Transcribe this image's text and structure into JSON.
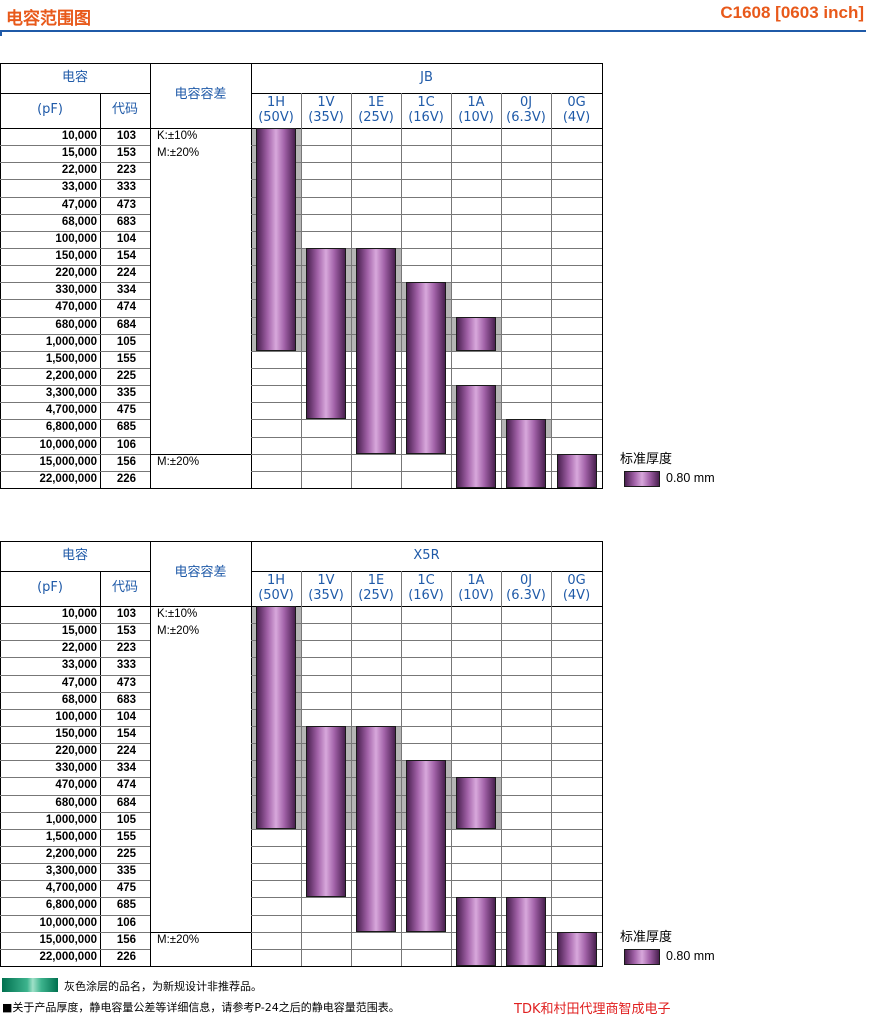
{
  "header": {
    "title_left": "电容范围图",
    "title_right": "C1608 [0603 inch]"
  },
  "columns": [
    {
      "code": "1H",
      "volt": "(50V)"
    },
    {
      "code": "1V",
      "volt": "(35V)"
    },
    {
      "code": "1E",
      "volt": "(25V)"
    },
    {
      "code": "1C",
      "volt": "(16V)"
    },
    {
      "code": "1A",
      "volt": "(10V)"
    },
    {
      "code": "0J",
      "volt": "(6.3V)"
    },
    {
      "code": "0G",
      "volt": "(4V)"
    }
  ],
  "table_headers": {
    "capacitance": "电容",
    "unit": "(pF)",
    "code": "代码",
    "tolerance": "电容容差"
  },
  "rows": [
    {
      "cap": "10,000",
      "code": "103"
    },
    {
      "cap": "15,000",
      "code": "153"
    },
    {
      "cap": "22,000",
      "code": "223"
    },
    {
      "cap": "33,000",
      "code": "333"
    },
    {
      "cap": "47,000",
      "code": "473"
    },
    {
      "cap": "68,000",
      "code": "683"
    },
    {
      "cap": "100,000",
      "code": "104"
    },
    {
      "cap": "150,000",
      "code": "154"
    },
    {
      "cap": "220,000",
      "code": "224"
    },
    {
      "cap": "330,000",
      "code": "334"
    },
    {
      "cap": "470,000",
      "code": "474"
    },
    {
      "cap": "680,000",
      "code": "684"
    },
    {
      "cap": "1,000,000",
      "code": "105"
    },
    {
      "cap": "1,500,000",
      "code": "155"
    },
    {
      "cap": "2,200,000",
      "code": "225"
    },
    {
      "cap": "3,300,000",
      "code": "335"
    },
    {
      "cap": "4,700,000",
      "code": "475"
    },
    {
      "cap": "6,800,000",
      "code": "685"
    },
    {
      "cap": "10,000,000",
      "code": "106"
    },
    {
      "cap": "15,000,000",
      "code": "156"
    },
    {
      "cap": "22,000,000",
      "code": "226"
    }
  ],
  "tolerance_labels": {
    "k": "K:±10%",
    "m": "M:±20%",
    "m2": "M:±20%"
  },
  "tables": [
    {
      "name": "JB",
      "bars": [
        {
          "col": 0,
          "start": 0,
          "end": 12
        },
        {
          "col": 1,
          "start": 7,
          "end": 16
        },
        {
          "col": 2,
          "start": 7,
          "end": 18
        },
        {
          "col": 3,
          "start": 9,
          "end": 18
        },
        {
          "col": 4,
          "start": 11,
          "end": 12
        },
        {
          "col": 4,
          "start": 15,
          "end": 20
        },
        {
          "col": 5,
          "start": 17,
          "end": 20
        },
        {
          "col": 6,
          "start": 19,
          "end": 20
        }
      ],
      "gray": [
        {
          "col": 0,
          "start": 0,
          "end": 12
        },
        {
          "col": 1,
          "start": 7,
          "end": 12
        },
        {
          "col": 2,
          "start": 7,
          "end": 12
        },
        {
          "col": 3,
          "start": 9,
          "end": 12
        },
        {
          "col": 4,
          "start": 11,
          "end": 12
        },
        {
          "col": 4,
          "start": 15,
          "end": 16
        },
        {
          "col": 5,
          "start": 17,
          "end": 17
        }
      ]
    },
    {
      "name": "X5R",
      "bars": [
        {
          "col": 0,
          "start": 0,
          "end": 12
        },
        {
          "col": 1,
          "start": 7,
          "end": 16
        },
        {
          "col": 2,
          "start": 7,
          "end": 18
        },
        {
          "col": 3,
          "start": 9,
          "end": 18
        },
        {
          "col": 4,
          "start": 10,
          "end": 12
        },
        {
          "col": 4,
          "start": 17,
          "end": 20
        },
        {
          "col": 5,
          "start": 17,
          "end": 20
        },
        {
          "col": 6,
          "start": 19,
          "end": 20
        }
      ],
      "gray": [
        {
          "col": 0,
          "start": 0,
          "end": 12
        },
        {
          "col": 1,
          "start": 7,
          "end": 12
        },
        {
          "col": 2,
          "start": 7,
          "end": 12
        },
        {
          "col": 3,
          "start": 9,
          "end": 12
        },
        {
          "col": 4,
          "start": 10,
          "end": 12
        }
      ]
    }
  ],
  "legend": {
    "title": "标准厚度",
    "value": "0.80 mm"
  },
  "footer": {
    "note1": "灰色涂层的品名，为新规设计非推荐品。",
    "note2": "■关于产品厚度，静电容量公差等详细信息，请参考P-24之后的静电容量范围表。",
    "brand": "TDK和村田代理商智成电子"
  },
  "colors": {
    "title": "#e8591a",
    "header_text": "#1f5aa8",
    "bar_mid": "#d8a8dc",
    "bar_edge": "#4a2050",
    "gray": "#b5b5b5",
    "brand": "#e02020"
  }
}
